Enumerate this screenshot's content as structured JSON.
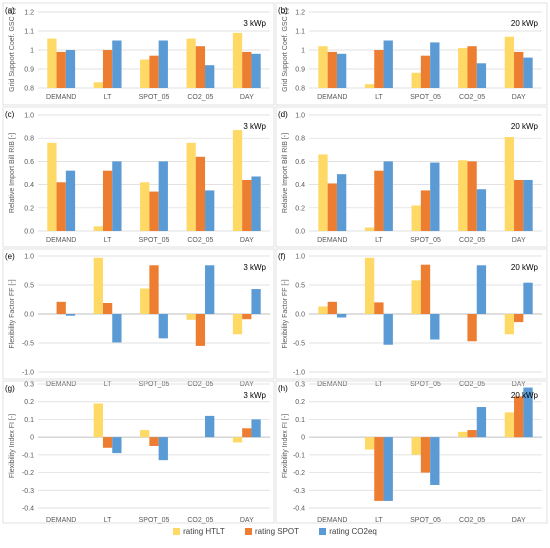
{
  "colors": {
    "rating HTLT": "#FFD966",
    "rating SPOT": "#ED7D31",
    "rating CO2eq": "#5B9BD5"
  },
  "legend": [
    "rating HTLT",
    "rating SPOT",
    "rating CO2eq"
  ],
  "chart_data": [
    {
      "panel": "(a)",
      "power_label": "3 kWp",
      "type": "bar",
      "ylabel": "Grid Support Coef. GSC [-]",
      "ylim": [
        0.8,
        1.2
      ],
      "yticks": [
        0.8,
        0.9,
        1.0,
        1.1,
        1.2
      ],
      "ytick_labels": [
        "0.8",
        "0.9",
        "1",
        "1.1",
        "1.2"
      ],
      "categories": [
        "DEMAND",
        "LT",
        "SPOT_05",
        "CO2_05",
        "DAY"
      ],
      "series": [
        {
          "name": "rating HTLT",
          "values": [
            1.06,
            0.83,
            0.95,
            1.06,
            1.09
          ]
        },
        {
          "name": "rating SPOT",
          "values": [
            0.99,
            1.0,
            0.97,
            1.02,
            0.99
          ]
        },
        {
          "name": "rating CO2eq",
          "values": [
            1.0,
            1.05,
            1.05,
            0.92,
            0.98
          ]
        }
      ]
    },
    {
      "panel": "(b)",
      "power_label": "20 kWp",
      "type": "bar",
      "ylabel": "Grid Support Coef. GSC [-]",
      "ylim": [
        0.8,
        1.2
      ],
      "yticks": [
        0.8,
        0.9,
        1.0,
        1.1,
        1.2
      ],
      "ytick_labels": [
        "0.8",
        "0.9",
        "1",
        "1.1",
        "1.2"
      ],
      "categories": [
        "DEMAND",
        "LT",
        "SPOT_05",
        "CO2_05",
        "DAY"
      ],
      "series": [
        {
          "name": "rating HTLT",
          "values": [
            1.02,
            0.82,
            0.88,
            1.01,
            1.07
          ]
        },
        {
          "name": "rating SPOT",
          "values": [
            0.99,
            1.0,
            0.97,
            1.02,
            0.99
          ]
        },
        {
          "name": "rating CO2eq",
          "values": [
            0.98,
            1.05,
            1.04,
            0.93,
            0.96
          ]
        }
      ]
    },
    {
      "panel": "(c)",
      "power_label": "3 kWp",
      "type": "bar",
      "ylabel": "Relative Import Bill RIB [-]",
      "ylim": [
        0.0,
        1.0
      ],
      "yticks": [
        0.0,
        0.2,
        0.4,
        0.6,
        0.8,
        1.0
      ],
      "ytick_labels": [
        "0.0",
        "0.2",
        "0.4",
        "0.6",
        "0.8",
        "1.0"
      ],
      "categories": [
        "DEMAND",
        "LT",
        "SPOT_05",
        "CO2_05",
        "DAY"
      ],
      "series": [
        {
          "name": "rating HTLT",
          "values": [
            0.76,
            0.04,
            0.42,
            0.76,
            0.87
          ]
        },
        {
          "name": "rating SPOT",
          "values": [
            0.42,
            0.52,
            0.34,
            0.64,
            0.44
          ]
        },
        {
          "name": "rating CO2eq",
          "values": [
            0.52,
            0.6,
            0.6,
            0.35,
            0.47
          ]
        }
      ]
    },
    {
      "panel": "(d)",
      "power_label": "20 kWp",
      "type": "bar",
      "ylabel": "Relative Import Bill RIB [-]",
      "ylim": [
        0.0,
        1.0
      ],
      "yticks": [
        0.0,
        0.2,
        0.4,
        0.6,
        0.8,
        1.0
      ],
      "ytick_labels": [
        "0.0",
        "0.2",
        "0.4",
        "0.6",
        "0.8",
        "1.0"
      ],
      "categories": [
        "DEMAND",
        "LT",
        "SPOT_05",
        "CO2_05",
        "DAY"
      ],
      "series": [
        {
          "name": "rating HTLT",
          "values": [
            0.66,
            0.03,
            0.22,
            0.61,
            0.81
          ]
        },
        {
          "name": "rating SPOT",
          "values": [
            0.41,
            0.52,
            0.35,
            0.6,
            0.44
          ]
        },
        {
          "name": "rating CO2eq",
          "values": [
            0.49,
            0.6,
            0.59,
            0.36,
            0.44
          ]
        }
      ]
    },
    {
      "panel": "(e)",
      "power_label": "3 kWp",
      "type": "bar",
      "ylabel": "Flexibility Factor FF [-]",
      "ylim": [
        -1.0,
        1.0
      ],
      "yticks": [
        -1.0,
        -0.5,
        0.0,
        0.5,
        1.0
      ],
      "ytick_labels": [
        "-1.0",
        "-0.5",
        "0.0",
        "0.5",
        "1.0"
      ],
      "categories": [
        "DEMAND",
        "LT",
        "SPOT_05",
        "CO2_05",
        "DAY"
      ],
      "series": [
        {
          "name": "rating HTLT",
          "values": [
            0.0,
            0.97,
            0.44,
            -0.1,
            -0.35
          ]
        },
        {
          "name": "rating SPOT",
          "values": [
            0.21,
            0.19,
            0.84,
            -0.55,
            -0.09
          ]
        },
        {
          "name": "rating CO2eq",
          "values": [
            -0.03,
            -0.49,
            -0.42,
            0.84,
            0.43
          ]
        }
      ]
    },
    {
      "panel": "(f)",
      "power_label": "20 kWp",
      "type": "bar",
      "ylabel": "Flexibility Factor FF [-]",
      "ylim": [
        -1.0,
        1.0
      ],
      "yticks": [
        -1.0,
        -0.5,
        0.0,
        0.5,
        1.0
      ],
      "ytick_labels": [
        "-1.0",
        "-0.5",
        "0.0",
        "0.5",
        "1.0"
      ],
      "categories": [
        "DEMAND",
        "LT",
        "SPOT_05",
        "CO2_05",
        "DAY"
      ],
      "series": [
        {
          "name": "rating HTLT",
          "values": [
            0.13,
            0.97,
            0.58,
            0.0,
            -0.35
          ]
        },
        {
          "name": "rating SPOT",
          "values": [
            0.21,
            0.2,
            0.85,
            -0.47,
            -0.14
          ]
        },
        {
          "name": "rating CO2eq",
          "values": [
            -0.06,
            -0.53,
            -0.44,
            0.84,
            0.54
          ]
        }
      ]
    },
    {
      "panel": "(g)",
      "power_label": "3 kWp",
      "type": "bar",
      "ylabel": "Flexibility Index FI [-]",
      "ylim": [
        -0.4,
        0.3
      ],
      "yticks": [
        -0.4,
        -0.3,
        -0.2,
        -0.1,
        0.0,
        0.1,
        0.2,
        0.3
      ],
      "ytick_labels": [
        "-0.4",
        "-0.3",
        "-0.2",
        "-0.1",
        "0",
        "0.1",
        "0.2",
        "0.3"
      ],
      "categories": [
        "DEMAND",
        "LT",
        "SPOT_05",
        "CO2_05",
        "DAY"
      ],
      "series": [
        {
          "name": "rating HTLT",
          "values": [
            0.0,
            0.19,
            0.04,
            0.0,
            -0.03
          ]
        },
        {
          "name": "rating SPOT",
          "values": [
            0.0,
            -0.06,
            -0.05,
            0.0,
            0.05
          ]
        },
        {
          "name": "rating CO2eq",
          "values": [
            0.0,
            -0.09,
            -0.13,
            0.12,
            0.1
          ]
        }
      ]
    },
    {
      "panel": "(h)",
      "power_label": "20 kWp",
      "type": "bar",
      "ylabel": "Flexibility Index FI [-]",
      "ylim": [
        -0.4,
        0.3
      ],
      "yticks": [
        -0.4,
        -0.3,
        -0.2,
        -0.1,
        0.0,
        0.1,
        0.2,
        0.3
      ],
      "ytick_labels": [
        "-0.4",
        "-0.3",
        "-0.2",
        "-0.1",
        "0",
        "0.1",
        "0.2",
        "0.3"
      ],
      "categories": [
        "DEMAND",
        "LT",
        "SPOT_05",
        "CO2_05",
        "DAY"
      ],
      "series": [
        {
          "name": "rating HTLT",
          "values": [
            0.0,
            -0.07,
            -0.1,
            0.03,
            0.14
          ]
        },
        {
          "name": "rating SPOT",
          "values": [
            0.0,
            -0.36,
            -0.2,
            0.04,
            0.23
          ]
        },
        {
          "name": "rating CO2eq",
          "values": [
            0.0,
            -0.36,
            -0.27,
            0.17,
            0.28
          ]
        }
      ]
    }
  ]
}
